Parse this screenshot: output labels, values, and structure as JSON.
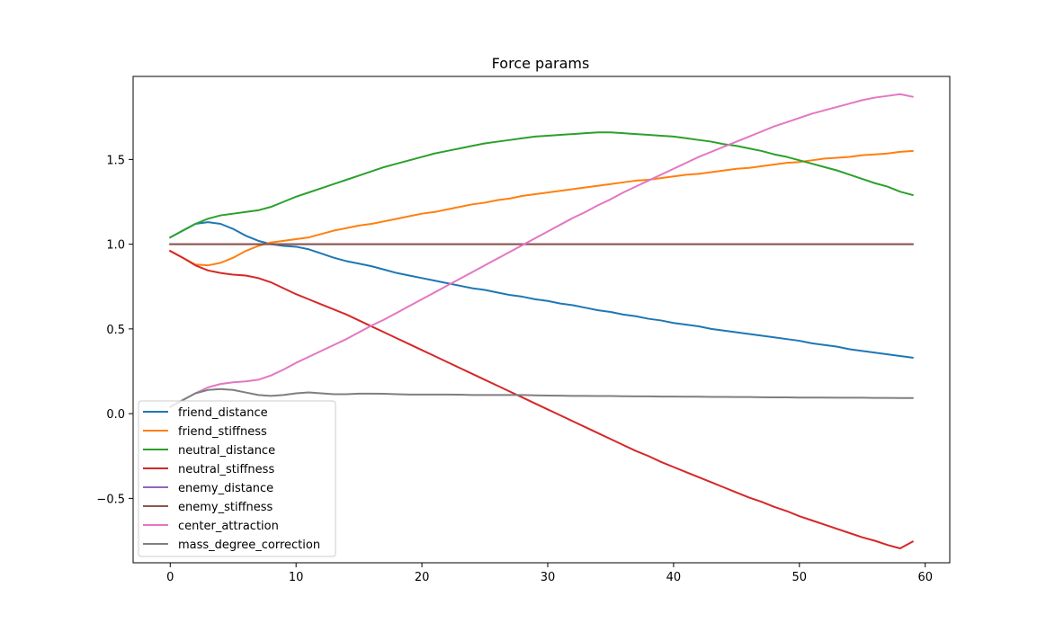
{
  "chart_data": {
    "type": "line",
    "title": "Force params",
    "xlabel": "",
    "ylabel": "",
    "xlim": [
      -2.95,
      61.95
    ],
    "ylim": [
      -0.88,
      1.99
    ],
    "x_ticks": [
      0,
      10,
      20,
      30,
      40,
      50,
      60
    ],
    "y_ticks": [
      -0.5,
      0.0,
      0.5,
      1.0,
      1.5
    ],
    "y_tick_labels": [
      "−0.5",
      "0.0",
      "0.5",
      "1.0",
      "1.5"
    ],
    "grid": false,
    "legend_position": "lower-left",
    "x": [
      0,
      1,
      2,
      3,
      4,
      5,
      6,
      7,
      8,
      9,
      10,
      11,
      12,
      13,
      14,
      15,
      16,
      17,
      18,
      19,
      20,
      21,
      22,
      23,
      24,
      25,
      26,
      27,
      28,
      29,
      30,
      31,
      32,
      33,
      34,
      35,
      36,
      37,
      38,
      39,
      40,
      41,
      42,
      43,
      44,
      45,
      46,
      47,
      48,
      49,
      50,
      51,
      52,
      53,
      54,
      55,
      56,
      57,
      58,
      59
    ],
    "series": [
      {
        "name": "friend_distance",
        "color": "#1f77b4",
        "values": [
          1.04,
          1.08,
          1.12,
          1.13,
          1.12,
          1.09,
          1.05,
          1.02,
          1.0,
          0.99,
          0.985,
          0.97,
          0.945,
          0.92,
          0.9,
          0.885,
          0.87,
          0.85,
          0.83,
          0.815,
          0.8,
          0.785,
          0.77,
          0.755,
          0.74,
          0.73,
          0.715,
          0.7,
          0.69,
          0.675,
          0.665,
          0.65,
          0.64,
          0.625,
          0.61,
          0.6,
          0.585,
          0.575,
          0.56,
          0.55,
          0.535,
          0.525,
          0.515,
          0.5,
          0.49,
          0.48,
          0.47,
          0.46,
          0.45,
          0.44,
          0.43,
          0.415,
          0.405,
          0.395,
          0.38,
          0.37,
          0.36,
          0.35,
          0.34,
          0.33
        ]
      },
      {
        "name": "friend_stiffness",
        "color": "#ff7f0e",
        "values": [
          0.96,
          0.92,
          0.88,
          0.875,
          0.89,
          0.92,
          0.96,
          0.99,
          1.01,
          1.02,
          1.03,
          1.04,
          1.06,
          1.08,
          1.095,
          1.11,
          1.12,
          1.135,
          1.15,
          1.165,
          1.18,
          1.19,
          1.205,
          1.22,
          1.235,
          1.245,
          1.26,
          1.27,
          1.285,
          1.295,
          1.305,
          1.315,
          1.325,
          1.335,
          1.345,
          1.355,
          1.365,
          1.375,
          1.38,
          1.39,
          1.4,
          1.41,
          1.415,
          1.425,
          1.435,
          1.445,
          1.45,
          1.46,
          1.47,
          1.48,
          1.485,
          1.495,
          1.505,
          1.51,
          1.515,
          1.525,
          1.53,
          1.535,
          1.545,
          1.55
        ]
      },
      {
        "name": "neutral_distance",
        "color": "#2ca02c",
        "values": [
          1.04,
          1.08,
          1.12,
          1.15,
          1.17,
          1.18,
          1.19,
          1.2,
          1.22,
          1.25,
          1.28,
          1.305,
          1.33,
          1.355,
          1.38,
          1.405,
          1.43,
          1.455,
          1.475,
          1.495,
          1.515,
          1.535,
          1.55,
          1.565,
          1.58,
          1.595,
          1.605,
          1.615,
          1.625,
          1.635,
          1.64,
          1.645,
          1.65,
          1.655,
          1.66,
          1.66,
          1.655,
          1.65,
          1.645,
          1.64,
          1.635,
          1.625,
          1.615,
          1.605,
          1.59,
          1.58,
          1.565,
          1.55,
          1.53,
          1.515,
          1.495,
          1.475,
          1.455,
          1.435,
          1.41,
          1.385,
          1.36,
          1.34,
          1.31,
          1.29
        ]
      },
      {
        "name": "neutral_stiffness",
        "color": "#d62728",
        "values": [
          0.96,
          0.92,
          0.875,
          0.845,
          0.83,
          0.82,
          0.815,
          0.8,
          0.775,
          0.74,
          0.705,
          0.675,
          0.645,
          0.615,
          0.585,
          0.55,
          0.515,
          0.48,
          0.445,
          0.41,
          0.375,
          0.34,
          0.305,
          0.27,
          0.235,
          0.2,
          0.165,
          0.13,
          0.095,
          0.06,
          0.025,
          -0.01,
          -0.045,
          -0.08,
          -0.115,
          -0.15,
          -0.185,
          -0.22,
          -0.25,
          -0.285,
          -0.315,
          -0.345,
          -0.375,
          -0.405,
          -0.435,
          -0.465,
          -0.495,
          -0.52,
          -0.55,
          -0.575,
          -0.605,
          -0.63,
          -0.655,
          -0.68,
          -0.705,
          -0.73,
          -0.75,
          -0.775,
          -0.795,
          -0.755
        ]
      },
      {
        "name": "enemy_distance",
        "color": "#9467bd",
        "values": [
          1.0,
          1.0,
          1.0,
          1.0,
          1.0,
          1.0,
          1.0,
          1.0,
          1.0,
          1.0,
          1.0,
          1.0,
          1.0,
          1.0,
          1.0,
          1.0,
          1.0,
          1.0,
          1.0,
          1.0,
          1.0,
          1.0,
          1.0,
          1.0,
          1.0,
          1.0,
          1.0,
          1.0,
          1.0,
          1.0,
          1.0,
          1.0,
          1.0,
          1.0,
          1.0,
          1.0,
          1.0,
          1.0,
          1.0,
          1.0,
          1.0,
          1.0,
          1.0,
          1.0,
          1.0,
          1.0,
          1.0,
          1.0,
          1.0,
          1.0,
          1.0,
          1.0,
          1.0,
          1.0,
          1.0,
          1.0,
          1.0,
          1.0,
          1.0,
          1.0
        ]
      },
      {
        "name": "enemy_stiffness",
        "color": "#8c564b",
        "values": [
          1.0,
          1.0,
          1.0,
          1.0,
          1.0,
          1.0,
          1.0,
          1.0,
          1.0,
          1.0,
          1.0,
          1.0,
          1.0,
          1.0,
          1.0,
          1.0,
          1.0,
          1.0,
          1.0,
          1.0,
          1.0,
          1.0,
          1.0,
          1.0,
          1.0,
          1.0,
          1.0,
          1.0,
          1.0,
          1.0,
          1.0,
          1.0,
          1.0,
          1.0,
          1.0,
          1.0,
          1.0,
          1.0,
          1.0,
          1.0,
          1.0,
          1.0,
          1.0,
          1.0,
          1.0,
          1.0,
          1.0,
          1.0,
          1.0,
          1.0,
          1.0,
          1.0,
          1.0,
          1.0,
          1.0,
          1.0,
          1.0,
          1.0,
          1.0,
          1.0
        ]
      },
      {
        "name": "center_attraction",
        "color": "#e377c2",
        "values": [
          0.04,
          0.08,
          0.12,
          0.155,
          0.175,
          0.185,
          0.19,
          0.2,
          0.225,
          0.26,
          0.3,
          0.335,
          0.37,
          0.405,
          0.44,
          0.48,
          0.52,
          0.555,
          0.595,
          0.635,
          0.675,
          0.715,
          0.755,
          0.795,
          0.835,
          0.875,
          0.915,
          0.955,
          0.995,
          1.035,
          1.075,
          1.115,
          1.155,
          1.19,
          1.23,
          1.265,
          1.305,
          1.34,
          1.375,
          1.41,
          1.445,
          1.48,
          1.515,
          1.545,
          1.575,
          1.605,
          1.635,
          1.665,
          1.695,
          1.72,
          1.745,
          1.77,
          1.79,
          1.81,
          1.83,
          1.85,
          1.865,
          1.875,
          1.885,
          1.87
        ]
      },
      {
        "name": "mass_degree_correction",
        "color": "#7f7f7f",
        "values": [
          0.04,
          0.08,
          0.12,
          0.14,
          0.145,
          0.14,
          0.125,
          0.11,
          0.105,
          0.11,
          0.12,
          0.125,
          0.12,
          0.115,
          0.115,
          0.118,
          0.118,
          0.117,
          0.115,
          0.113,
          0.113,
          0.113,
          0.113,
          0.112,
          0.11,
          0.11,
          0.11,
          0.11,
          0.11,
          0.108,
          0.107,
          0.106,
          0.105,
          0.105,
          0.104,
          0.104,
          0.103,
          0.102,
          0.102,
          0.101,
          0.101,
          0.1,
          0.1,
          0.099,
          0.099,
          0.098,
          0.098,
          0.097,
          0.096,
          0.096,
          0.095,
          0.095,
          0.095,
          0.094,
          0.094,
          0.094,
          0.093,
          0.093,
          0.092,
          0.092
        ]
      }
    ]
  }
}
